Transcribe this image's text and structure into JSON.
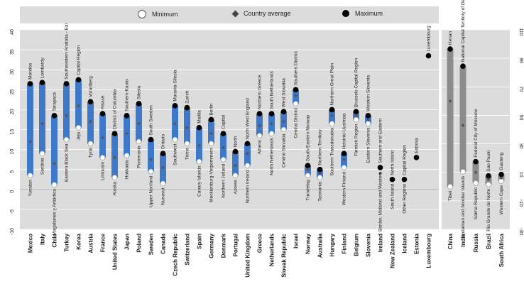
{
  "legend": {
    "minimum": "Minimum",
    "average": "Country average",
    "maximum": "Maximum"
  },
  "colors": {
    "oecd_bar": "#3e78c9",
    "partner_bar": "#8c8c8c",
    "panel_bg": "#dcdcdc",
    "max_dot": "#000000",
    "min_dot": "#ffffff",
    "avg_dot": "#555555"
  },
  "chart_data": {
    "type": "range-dot",
    "left_axis": {
      "min": -10,
      "max": 40,
      "ticks": [
        "-10",
        "-5",
        "0",
        "5",
        "10",
        "15",
        "20",
        "25",
        "30",
        "35",
        "40"
      ]
    },
    "right_axis": {
      "min": -30,
      "max": 110,
      "ticks": [
        "-30",
        "-10",
        "10",
        "30",
        "50",
        "70",
        "90",
        "110"
      ]
    },
    "grid": true,
    "countries": [
      {
        "name": "Mexico",
        "min": 3.5,
        "avg": 12,
        "max": 26.5,
        "min_label": "Yucatan",
        "max_label": "Morelos"
      },
      {
        "name": "Italy",
        "min": 9,
        "avg": 16.5,
        "max": 26.8,
        "min_label": "Sardinia",
        "max_label": "Lombardy"
      },
      {
        "name": "Chile",
        "min": 1.2,
        "avg": 6.5,
        "max": 18.5,
        "min_label": "Magallanes y Antártica",
        "max_label": "Tarapacá"
      },
      {
        "name": "Turkey",
        "min": 12.5,
        "avg": 18.5,
        "max": 26.5,
        "min_label": "Eastern Black Sea",
        "max_label": "Southeastern Anatolia - East"
      },
      {
        "name": "Korea",
        "min": 15.5,
        "avg": 21,
        "max": 27.5,
        "min_label": "Jeju",
        "max_label": "Capital Region"
      },
      {
        "name": "Austria",
        "min": 11.5,
        "avg": 17,
        "max": 22,
        "min_label": "Tyrol",
        "max_label": "Vorarlberg"
      },
      {
        "name": "France",
        "min": 8,
        "avg": 13,
        "max": 19,
        "min_label": "Limousin",
        "max_label": "Alsace"
      },
      {
        "name": "United States",
        "min": 3,
        "avg": 8,
        "max": 14,
        "min_label": "Alaska",
        "max_label": "District of Columbia"
      },
      {
        "name": "Japan",
        "min": 8.5,
        "avg": 14,
        "max": 18.5,
        "min_label": "Hokkaido",
        "max_label": "Southern-Kanto"
      },
      {
        "name": "Poland",
        "min": 12,
        "avg": 16.5,
        "max": 21.5,
        "min_label": "Pomerania",
        "max_label": "Silesia"
      },
      {
        "name": "Sweden",
        "min": 4.5,
        "avg": 7.5,
        "max": 12.5,
        "min_label": "Upper Norrland",
        "max_label": "South Sweden"
      },
      {
        "name": "Canada",
        "min": 1.5,
        "avg": 5.5,
        "max": 9,
        "min_label": "Nunavut",
        "max_label": "Ontario"
      },
      {
        "name": "Czech Republic",
        "min": 12.5,
        "avg": 16.5,
        "max": 21,
        "min_label": "Southwest",
        "max_label": "Moravia-Silesia"
      },
      {
        "name": "Switzerland",
        "min": 11.5,
        "avg": 15.5,
        "max": 20.5,
        "min_label": "Ticino",
        "max_label": "Zurich"
      },
      {
        "name": "Spain",
        "min": 7,
        "avg": 11,
        "max": 15.5,
        "min_label": "Canary Islands",
        "max_label": "Melilla"
      },
      {
        "name": "Germany",
        "min": 11.5,
        "avg": 14,
        "max": 17.5,
        "min_label": "Mecklenburg-Vorpommern",
        "max_label": "Berlin"
      },
      {
        "name": "Denmark",
        "min": 7.5,
        "avg": 10.5,
        "max": 14,
        "min_label": "Northern Jutland",
        "max_label": "Capital"
      },
      {
        "name": "Portugal",
        "min": 3.5,
        "avg": 6,
        "max": 9.5,
        "min_label": "Azores",
        "max_label": "North"
      },
      {
        "name": "United Kingdom",
        "min": 6,
        "avg": 9,
        "max": 11.5,
        "min_label": "Northern Ireland",
        "max_label": "North West England"
      },
      {
        "name": "Greece",
        "min": 13.5,
        "avg": 16,
        "max": 19,
        "min_label": "Athens",
        "max_label": "Northern Greece"
      },
      {
        "name": "Netherlands",
        "min": 14,
        "avg": 16.5,
        "max": 19,
        "min_label": "North Netherlands",
        "max_label": "South Netherlands"
      },
      {
        "name": "Slovak Republic",
        "min": 15,
        "avg": 17,
        "max": 19.5,
        "min_label": "Central Slovakia",
        "max_label": "West Slovakia"
      },
      {
        "name": "Israel",
        "min": 21.5,
        "avg": 23.5,
        "max": 25,
        "min_label": "Central District",
        "max_label": "Southern District"
      },
      {
        "name": "Norway",
        "min": 3.5,
        "avg": 5,
        "max": 6,
        "min_label": "Trøndelag",
        "max_label": "South-Eastern Norway"
      },
      {
        "name": "Australia",
        "min": 3,
        "avg": 4,
        "max": 5,
        "min_label": "Tasmania",
        "max_label": "Northern Territory"
      },
      {
        "name": "Hungary",
        "min": 16.5,
        "avg": 18.5,
        "max": 20,
        "min_label": "Southern Transdanubia",
        "max_label": "Northern Great Plain"
      },
      {
        "name": "Finland",
        "min": 5.5,
        "avg": 7.5,
        "max": 9,
        "min_label": "Western Finland",
        "max_label": "Helsinki-Uusimaa"
      },
      {
        "name": "Belgium",
        "min": 17.5,
        "avg": 18.5,
        "max": 19.5,
        "min_label": "Flemish Region",
        "max_label": "Brussels Capital Region"
      },
      {
        "name": "Slovenia",
        "min": 16.5,
        "avg": 17.5,
        "max": 18.5,
        "min_label": "Eastern Slovenia",
        "max_label": "Western Slovenia"
      },
      {
        "name": "Ireland",
        "min": null,
        "avg": 4,
        "max": 5.5,
        "min_label": "Border, Midland and Western",
        "max_label": "Southern and Eastern"
      },
      {
        "name": "New Zealand",
        "min": null,
        "avg": null,
        "max": 2.5,
        "min_label": "South Island",
        "max_label": "North Island"
      },
      {
        "name": "Iceland",
        "min": null,
        "avg": null,
        "max": 2.5,
        "min_label": "Other Regions",
        "max_label": "Capital Region"
      },
      {
        "name": "Estonia",
        "min": null,
        "avg": null,
        "max": 8,
        "min_label": "",
        "max_label": "Estonia"
      },
      {
        "name": "Luxembourg",
        "min": null,
        "avg": null,
        "max": 33.5,
        "min_label": "",
        "max_label": "Luxembourg"
      }
    ],
    "partners": [
      {
        "name": "China",
        "min": 0,
        "avg": 60,
        "max": 96.5,
        "min_label": "Tibet",
        "max_label": "Henan"
      },
      {
        "name": "India",
        "min": 10.5,
        "avg": 43,
        "max": 84.5,
        "min_label": "Andaman and Nicobar Islands",
        "max_label": "National Capital Territory of Delhi"
      },
      {
        "name": "Russia",
        "min": 2.5,
        "avg": 10,
        "max": 17.5,
        "min_label": "Sakha Republic",
        "max_label": "Federal City of Moscow"
      },
      {
        "name": "Brazil",
        "min": 1.5,
        "avg": 5,
        "max": 7.5,
        "min_label": "Rio Grande do Norte",
        "max_label": "Sao Paulo"
      },
      {
        "name": "South Africa",
        "min": 4,
        "avg": 6,
        "max": 8.5,
        "min_label": "Western Cape",
        "max_label": "Gauteng"
      }
    ]
  }
}
